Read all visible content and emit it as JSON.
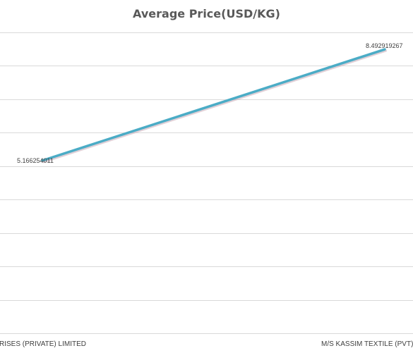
{
  "chart_data": {
    "type": "line",
    "title": "Average Price(USD/KG)",
    "categories": [
      "ENTERPRISES (PRIVATE) LIMITED",
      "M/S KASSIM TEXTILE (PVT) LTD"
    ],
    "series": [
      {
        "values": [
          5.166254011,
          8.492919267
        ],
        "labels": [
          "5.166254011",
          "8.492919267"
        ],
        "color": "#4bacc6"
      }
    ],
    "ylim": [
      0,
      9
    ],
    "grid": true,
    "legend": "none"
  }
}
